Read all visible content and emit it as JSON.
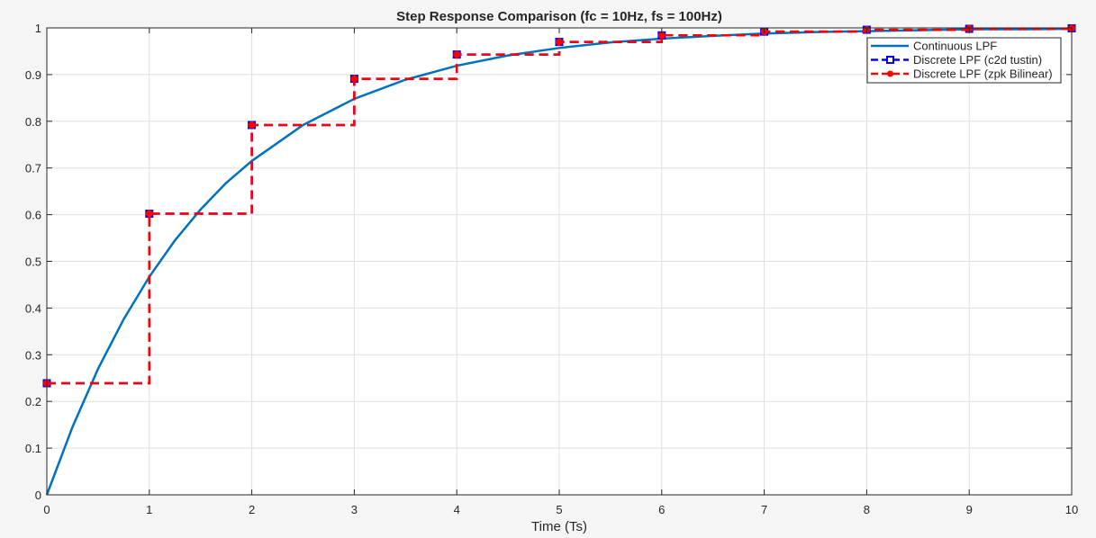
{
  "chart_data": {
    "type": "line",
    "title": "Step Response Comparison (fc = 10Hz, fs = 100Hz)",
    "xlabel": "Time (Ts)",
    "ylabel": "",
    "xlim": [
      0,
      10
    ],
    "ylim": [
      0,
      1
    ],
    "xticks": [
      0,
      1,
      2,
      3,
      4,
      5,
      6,
      7,
      8,
      9,
      10
    ],
    "yticks": [
      0,
      0.1,
      0.2,
      0.3,
      0.4,
      0.5,
      0.6,
      0.7,
      0.8,
      0.9,
      1
    ],
    "grid": true,
    "legend_position": "top-right",
    "series": [
      {
        "name": "Continuous LPF",
        "style": "line",
        "color": "#0072BD",
        "x": [
          0,
          0.25,
          0.5,
          0.75,
          1,
          1.25,
          1.5,
          1.75,
          2,
          2.5,
          3,
          3.5,
          4,
          4.5,
          5,
          5.5,
          6,
          6.5,
          7,
          7.5,
          8,
          8.5,
          9,
          9.5,
          10
        ],
        "y": [
          0,
          0.145,
          0.27,
          0.376,
          0.467,
          0.545,
          0.611,
          0.668,
          0.715,
          0.792,
          0.848,
          0.889,
          0.919,
          0.941,
          0.957,
          0.969,
          0.977,
          0.983,
          0.988,
          0.991,
          0.993,
          0.995,
          0.997,
          0.997,
          0.998
        ]
      },
      {
        "name": "Discrete LPF (c2d tustin)",
        "style": "stairs-square",
        "color": "#0000FF",
        "x": [
          0,
          1,
          2,
          3,
          4,
          5,
          6,
          7,
          8,
          9,
          10
        ],
        "y": [
          0.239,
          0.602,
          0.792,
          0.891,
          0.943,
          0.97,
          0.984,
          0.992,
          0.996,
          0.998,
          0.999
        ]
      },
      {
        "name": "Discrete LPF (zpk Bilinear)",
        "style": "stairs-circle",
        "color": "#FF0000",
        "x": [
          0,
          1,
          2,
          3,
          4,
          5,
          6,
          7,
          8,
          9,
          10
        ],
        "y": [
          0.239,
          0.602,
          0.792,
          0.891,
          0.943,
          0.97,
          0.984,
          0.992,
          0.996,
          0.998,
          0.999
        ]
      }
    ]
  }
}
